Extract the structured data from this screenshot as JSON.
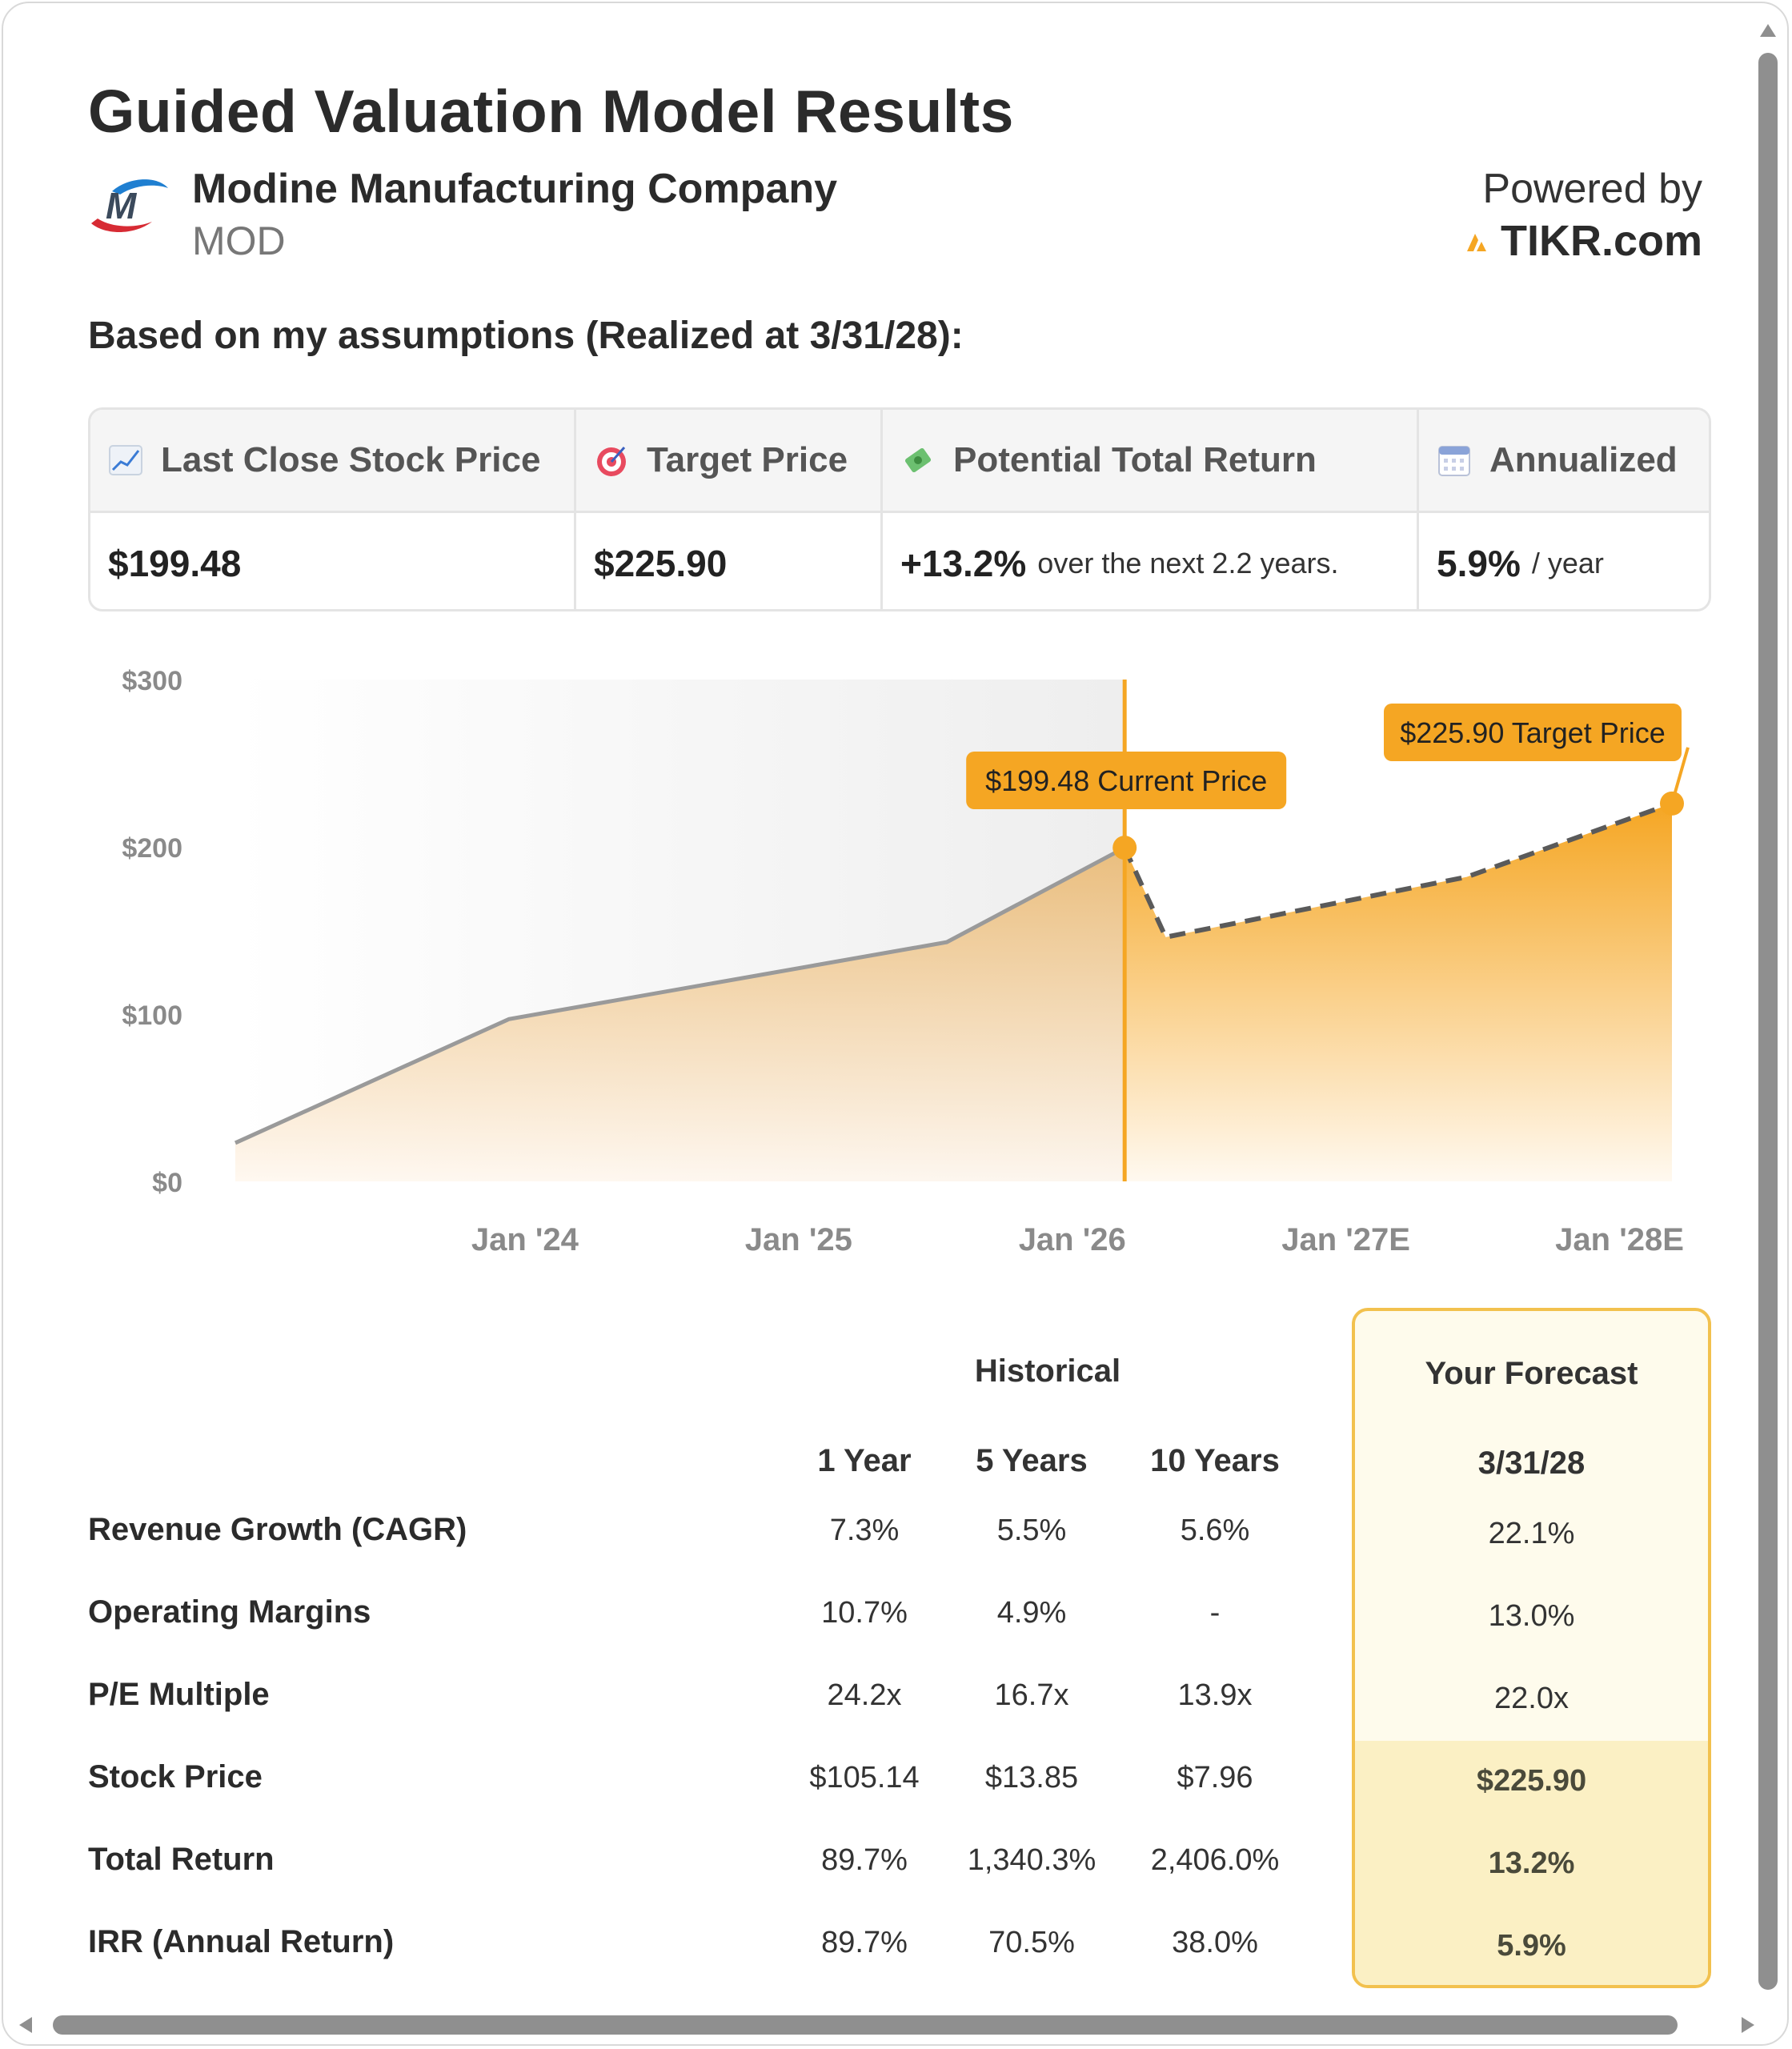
{
  "title": "Guided Valuation Model Results",
  "company": {
    "name": "Modine Manufacturing Company",
    "ticker": "MOD",
    "logo_icon": "modine-m-logo-icon"
  },
  "powered": {
    "label": "Powered by",
    "brand": "TIKR.com",
    "brand_icon": "tikr-logo-icon"
  },
  "assumptions_heading": "Based on my assumptions (Realized at 3/31/28):",
  "summary": {
    "headers": [
      {
        "label": "Last Close Stock Price",
        "icon": "chart-increasing-icon"
      },
      {
        "label": "Target Price",
        "icon": "bullseye-icon"
      },
      {
        "label": "Potential Total Return",
        "icon": "money-with-wings-icon"
      },
      {
        "label": "Annualized",
        "icon": "calendar-icon"
      }
    ],
    "last_close": "$199.48",
    "target": "$225.90",
    "total_return": "+13.2%",
    "total_return_suffix": "over the next 2.2 years.",
    "annualized": "5.9%",
    "annualized_suffix": "/ year"
  },
  "chart_data": {
    "type": "area",
    "y_ticks": [
      "$0",
      "$100",
      "$200",
      "$300"
    ],
    "ylim": [
      0,
      300
    ],
    "x_ticks": [
      "Jan '24",
      "Jan '25",
      "Jan '26",
      "Jan '27E",
      "Jan '28E"
    ],
    "historical": {
      "x": [
        2023.0,
        2024.0,
        2025.6,
        2026.25
      ],
      "y": [
        23,
        97,
        143,
        199.48
      ]
    },
    "forecast": {
      "x": [
        2026.25,
        2026.4,
        2027.5,
        2028.25
      ],
      "y": [
        199.48,
        146,
        182,
        225.9
      ]
    },
    "current_marker": {
      "x": 2026.25,
      "y": 199.48,
      "label": "$199.48 Current Price"
    },
    "target_marker": {
      "x": 2028.25,
      "y": 225.9,
      "label": "$225.90 Target Price"
    },
    "colors": {
      "accent": "#f5a623",
      "line": "#9a9a9a",
      "dashed": "#5a5a5a"
    }
  },
  "table": {
    "group_historical": "Historical",
    "group_forecast": "Your Forecast",
    "columns": [
      "1 Year",
      "5 Years",
      "10 Years"
    ],
    "forecast_column": "3/31/28",
    "rows": [
      {
        "label": "Revenue Growth (CAGR)",
        "values": [
          "7.3%",
          "5.5%",
          "5.6%"
        ],
        "forecast": "22.1%"
      },
      {
        "label": "Operating Margins",
        "values": [
          "10.7%",
          "4.9%",
          "-"
        ],
        "forecast": "13.0%"
      },
      {
        "label": "P/E Multiple",
        "values": [
          "24.2x",
          "16.7x",
          "13.9x"
        ],
        "forecast": "22.0x"
      },
      {
        "label": "Stock Price",
        "values": [
          "$105.14",
          "$13.85",
          "$7.96"
        ],
        "forecast": "$225.90"
      },
      {
        "label": "Total Return",
        "values": [
          "89.7%",
          "1,340.3%",
          "2,406.0%"
        ],
        "forecast": "13.2%"
      },
      {
        "label": "IRR (Annual Return)",
        "values": [
          "89.7%",
          "70.5%",
          "38.0%"
        ],
        "forecast": "5.9%"
      }
    ]
  }
}
